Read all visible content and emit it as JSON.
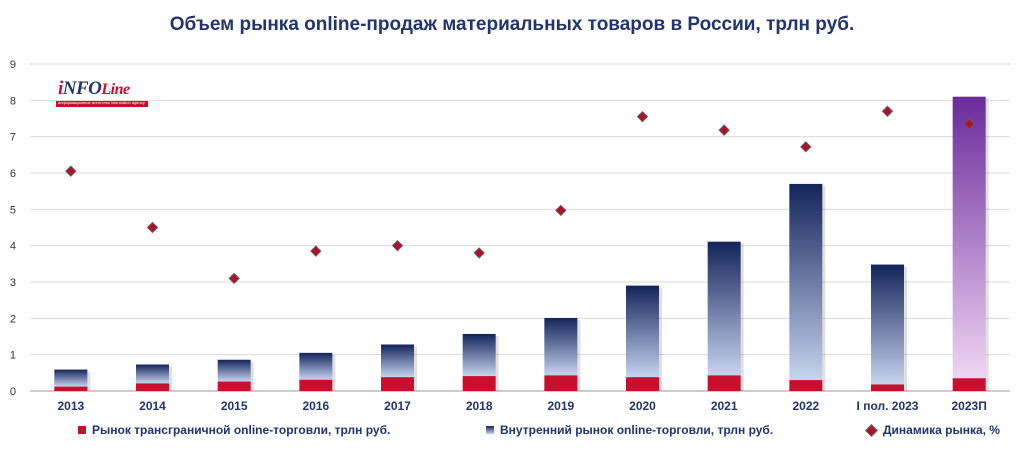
{
  "title": "Объем рынка online-продаж материальных товаров в России, трлн руб.",
  "logo": {
    "text_main": "INFO",
    "text_script": "Line",
    "tagline": "информационное агентство  information agency"
  },
  "legend": [
    {
      "label": "Рынок трансграничной online-торговли, трлн руб."
    },
    {
      "label": "Внутренний рынок online-торговли, трлн руб."
    },
    {
      "label": "Динамика рынка, %"
    }
  ],
  "colors": {
    "title": "#1f3470",
    "cross_border": "#c8102e",
    "domestic_top": "#13245a",
    "domestic_bottom": "#c5d4ef",
    "forecast_top": "#6a2a9a",
    "forecast_bottom": "#f0d4f4",
    "dynamics_marker": "#b4111f"
  },
  "chart_data": {
    "type": "bar",
    "stacked": true,
    "title": "Объем рынка online-продаж материальных товаров в России, трлн руб.",
    "categories": [
      "2013",
      "2014",
      "2015",
      "2016",
      "2017",
      "2018",
      "2019",
      "2020",
      "2021",
      "2022",
      "I пол. 2023",
      "2023П"
    ],
    "series": [
      {
        "name": "Рынок трансграничной online-торговли, трлн руб.",
        "type": "bar",
        "values": [
          0.12,
          0.21,
          0.26,
          0.31,
          0.38,
          0.41,
          0.43,
          0.38,
          0.43,
          0.3,
          0.18,
          0.35
        ]
      },
      {
        "name": "Внутренний рынок online-торговли, трлн руб.",
        "type": "bar",
        "values": [
          0.47,
          0.52,
          0.6,
          0.74,
          0.9,
          1.16,
          1.58,
          2.52,
          3.68,
          5.4,
          3.3,
          7.75
        ]
      },
      {
        "name": "Динамика рынка, %",
        "type": "scatter",
        "marker": "diamond",
        "values": [
          6.05,
          4.5,
          3.1,
          3.85,
          4.0,
          3.8,
          4.97,
          7.55,
          7.18,
          6.72,
          7.7,
          7.35
        ]
      }
    ],
    "ylim": [
      0,
      9
    ],
    "yticks": [
      0,
      1,
      2,
      3,
      4,
      5,
      6,
      7,
      8,
      9
    ],
    "grid": true,
    "legend_position": "bottom",
    "forecast_category": "2023П"
  }
}
